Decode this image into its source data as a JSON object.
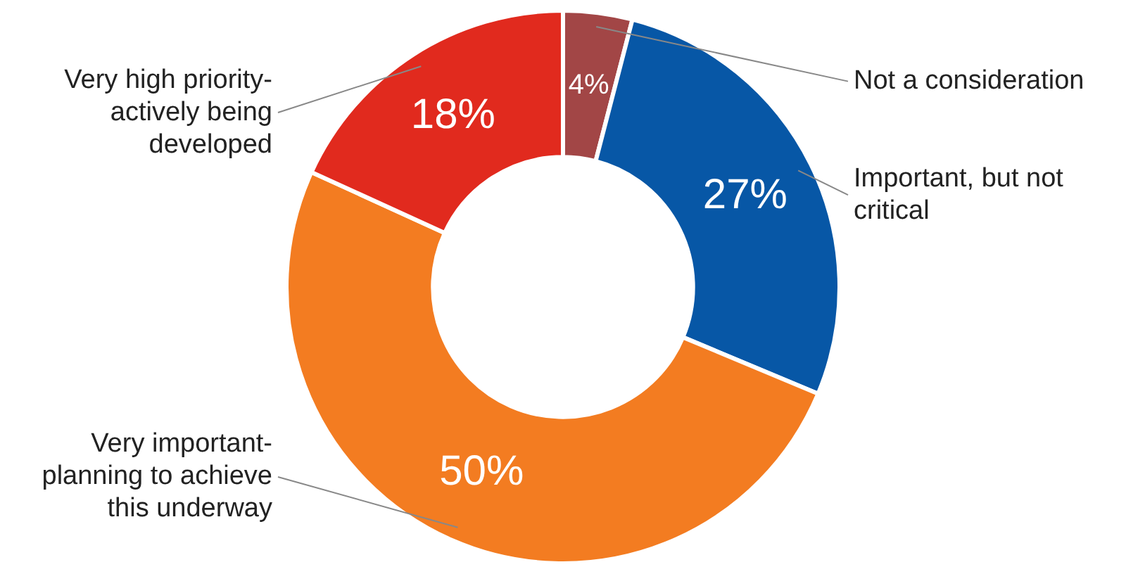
{
  "chart_data": {
    "type": "donut",
    "categories": [
      "Not a consideration",
      "Important, but not critical",
      "Very important-planning to achieve this underway",
      "Very high priority-actively being developed"
    ],
    "values": [
      4,
      27,
      50,
      18
    ],
    "colors": [
      "#a24646",
      "#0757a6",
      "#f37c21",
      "#e12a1e"
    ],
    "value_labels": [
      "4%",
      "27%",
      "50%",
      "18%"
    ],
    "legend": false
  }
}
